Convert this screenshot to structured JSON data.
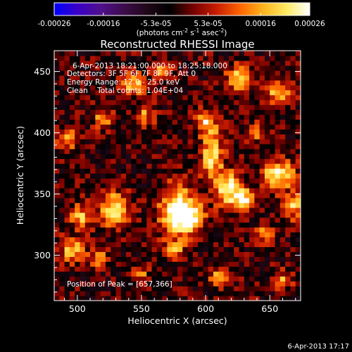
{
  "chart_data": {
    "type": "heatmap",
    "title": "Reconstructed RHESSI Image",
    "xlabel": "Heliocentric X (arcsec)",
    "ylabel": "Heliocentric Y (arcsec)",
    "xlim": [
      482,
      674
    ],
    "ylim": [
      263,
      467
    ],
    "x_ticks": [
      500,
      550,
      600,
      650
    ],
    "y_ticks": [
      300,
      350,
      400,
      450
    ],
    "grid": false,
    "colorbar": {
      "range": [
        -0.00026,
        0.00026
      ],
      "tick_values": [
        -0.00026,
        -0.00016,
        -5.3e-05,
        5.3e-05,
        0.00016,
        0.00026
      ],
      "tick_labels": [
        "-0.00026",
        "-0.00016",
        "-5.3e-05",
        "5.3e-05",
        "0.00016",
        "0.00026"
      ],
      "unit_prefix": "(photons cm",
      "unit_exp1": "-2",
      "unit_mid": " s",
      "unit_exp2": "-1",
      "unit_mid2": " asec",
      "unit_exp3": "-2",
      "unit_suffix": ")",
      "colors": [
        "#0000ff",
        "#3a00c8",
        "#50108c",
        "#3c0c4c",
        "#200818",
        "#000000",
        "#780000",
        "#c81e00",
        "#ff6400",
        "#ffb41e",
        "#ffeb64",
        "#ffffff"
      ]
    },
    "annotations": [
      "6-Apr-2013 18:21:00.000 to 18:25:18.000",
      "Detectors: 3F 5F 6F 7F 8F 9F, Att 0",
      "Energy Range: 12.0 - 25.0 keV",
      "Clean    Total counts: 1.04E+04"
    ],
    "peak_label": "Position of Peak = [657,366]",
    "peak_position": [
      657,
      366
    ],
    "image": {
      "x_range": [
        482,
        674
      ],
      "y_range": [
        263,
        467
      ],
      "nx": 48,
      "ny": 51,
      "peak": 0.00026,
      "blobs": [
        {
          "x": 578,
          "y": 338,
          "sx": 10,
          "sy": 14,
          "a": 1.0
        },
        {
          "x": 588,
          "y": 330,
          "sx": 8,
          "sy": 8,
          "a": 0.85
        },
        {
          "x": 605,
          "y": 385,
          "sx": 6,
          "sy": 16,
          "a": 0.85
        },
        {
          "x": 600,
          "y": 410,
          "sx": 5,
          "sy": 6,
          "a": 0.7
        },
        {
          "x": 618,
          "y": 355,
          "sx": 8,
          "sy": 10,
          "a": 0.95
        },
        {
          "x": 630,
          "y": 345,
          "sx": 6,
          "sy": 6,
          "a": 0.8
        },
        {
          "x": 657,
          "y": 366,
          "sx": 9,
          "sy": 8,
          "a": 1.0
        },
        {
          "x": 668,
          "y": 340,
          "sx": 6,
          "sy": 7,
          "a": 0.75
        },
        {
          "x": 646,
          "y": 318,
          "sx": 5,
          "sy": 5,
          "a": 0.7
        },
        {
          "x": 528,
          "y": 338,
          "sx": 8,
          "sy": 10,
          "a": 0.9
        },
        {
          "x": 503,
          "y": 332,
          "sx": 6,
          "sy": 7,
          "a": 0.7
        },
        {
          "x": 496,
          "y": 305,
          "sx": 7,
          "sy": 7,
          "a": 0.75
        },
        {
          "x": 517,
          "y": 298,
          "sx": 5,
          "sy": 5,
          "a": 0.6
        },
        {
          "x": 492,
          "y": 395,
          "sx": 6,
          "sy": 6,
          "a": 0.7
        },
        {
          "x": 520,
          "y": 412,
          "sx": 5,
          "sy": 6,
          "a": 0.6
        },
        {
          "x": 544,
          "y": 440,
          "sx": 7,
          "sy": 6,
          "a": 0.75
        },
        {
          "x": 566,
          "y": 452,
          "sx": 6,
          "sy": 5,
          "a": 0.6
        },
        {
          "x": 625,
          "y": 445,
          "sx": 6,
          "sy": 7,
          "a": 0.8
        },
        {
          "x": 657,
          "y": 432,
          "sx": 7,
          "sy": 6,
          "a": 0.75
        },
        {
          "x": 640,
          "y": 400,
          "sx": 5,
          "sy": 5,
          "a": 0.6
        },
        {
          "x": 553,
          "y": 415,
          "sx": 5,
          "sy": 8,
          "a": 0.55
        },
        {
          "x": 575,
          "y": 305,
          "sx": 6,
          "sy": 6,
          "a": 0.6
        },
        {
          "x": 612,
          "y": 283,
          "sx": 6,
          "sy": 5,
          "a": 0.65
        },
        {
          "x": 660,
          "y": 280,
          "sx": 5,
          "sy": 5,
          "a": 0.6
        },
        {
          "x": 548,
          "y": 285,
          "sx": 5,
          "sy": 5,
          "a": 0.55
        }
      ]
    }
  },
  "footer": {
    "timestamp": "6-Apr-2013 17:17"
  }
}
